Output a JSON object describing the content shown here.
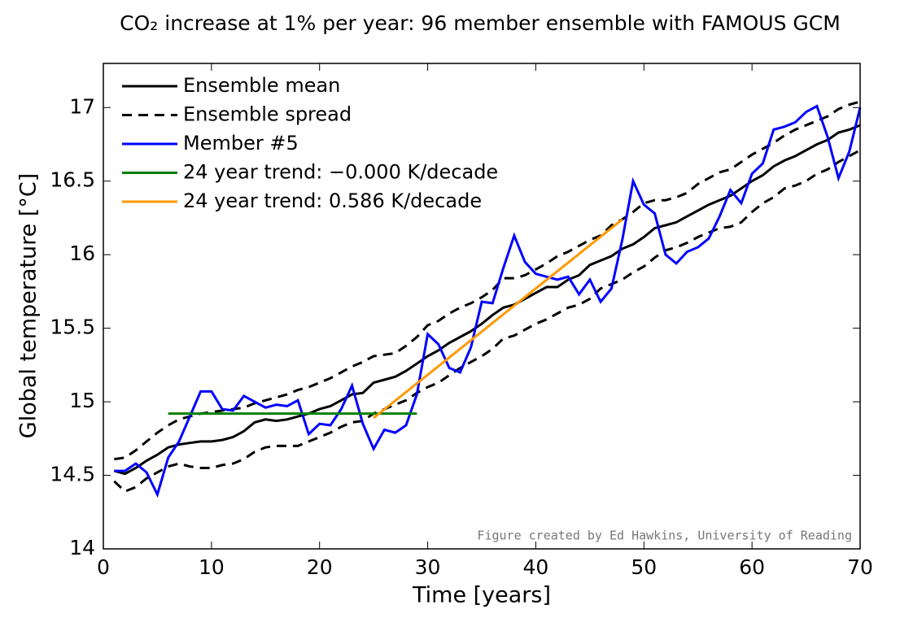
{
  "chart_data": {
    "type": "line",
    "title": "CO₂ increase at 1% per year: 96 member ensemble with FAMOUS GCM",
    "xlabel": "Time  [years]",
    "ylabel": "Global temperature  [°C]",
    "annotation": "Figure created by Ed Hawkins, University of Reading",
    "xlim": [
      0,
      70
    ],
    "xticks": [
      0,
      10,
      20,
      30,
      40,
      50,
      60,
      70
    ],
    "ylim": [
      14,
      17.3
    ],
    "yticks": [
      14,
      14.5,
      15,
      15.5,
      16,
      16.5,
      17
    ],
    "legend": "upper left",
    "x": [
      1,
      2,
      3,
      4,
      5,
      6,
      7,
      8,
      9,
      10,
      11,
      12,
      13,
      14,
      15,
      16,
      17,
      18,
      19,
      20,
      21,
      22,
      23,
      24,
      25,
      26,
      27,
      28,
      29,
      30,
      31,
      32,
      33,
      34,
      35,
      36,
      37,
      38,
      39,
      40,
      41,
      42,
      43,
      44,
      45,
      46,
      47,
      48,
      49,
      50,
      51,
      52,
      53,
      54,
      55,
      56,
      57,
      58,
      59,
      60,
      61,
      62,
      63,
      64,
      65,
      66,
      67,
      68,
      69,
      70
    ],
    "series": [
      {
        "name": "Ensemble mean",
        "color": "#000000",
        "dash": false,
        "values": [
          14.53,
          14.51,
          14.55,
          14.6,
          14.64,
          14.69,
          14.71,
          14.72,
          14.73,
          14.73,
          14.74,
          14.76,
          14.8,
          14.86,
          14.88,
          14.87,
          14.88,
          14.9,
          14.92,
          14.95,
          14.97,
          15.01,
          15.05,
          15.06,
          15.13,
          15.15,
          15.17,
          15.21,
          15.26,
          15.31,
          15.35,
          15.4,
          15.44,
          15.48,
          15.53,
          15.59,
          15.64,
          15.66,
          15.7,
          15.74,
          15.78,
          15.78,
          15.83,
          15.86,
          15.93,
          15.96,
          15.99,
          16.04,
          16.07,
          16.12,
          16.18,
          16.2,
          16.22,
          16.26,
          16.3,
          16.34,
          16.37,
          16.4,
          16.45,
          16.5,
          16.54,
          16.6,
          16.64,
          16.67,
          16.71,
          16.75,
          16.78,
          16.83,
          16.85,
          16.88
        ]
      },
      {
        "name": "Ensemble spread",
        "color": "#000000",
        "dash": true,
        "values": [
          14.61,
          14.62,
          14.67,
          14.73,
          14.79,
          14.84,
          14.88,
          14.9,
          14.92,
          14.93,
          14.94,
          14.95,
          14.96,
          14.99,
          15.01,
          15.03,
          15.05,
          15.08,
          15.1,
          15.13,
          15.16,
          15.2,
          15.24,
          15.27,
          15.31,
          15.32,
          15.33,
          15.38,
          15.44,
          15.52,
          15.55,
          15.6,
          15.64,
          15.67,
          15.71,
          15.76,
          15.84,
          15.84,
          15.86,
          15.9,
          15.94,
          15.99,
          16.02,
          16.06,
          16.1,
          16.13,
          16.2,
          16.24,
          16.29,
          16.35,
          16.37,
          16.37,
          16.39,
          16.42,
          16.48,
          16.52,
          16.56,
          16.58,
          16.63,
          16.68,
          16.72,
          16.76,
          16.81,
          16.85,
          16.88,
          16.91,
          16.94,
          16.99,
          17.02,
          17.04
        ],
        "lower": [
          14.46,
          14.39,
          14.42,
          14.48,
          14.52,
          14.56,
          14.58,
          14.56,
          14.55,
          14.55,
          14.57,
          14.58,
          14.61,
          14.66,
          14.69,
          14.7,
          14.7,
          14.7,
          14.73,
          14.76,
          14.79,
          14.83,
          14.86,
          14.87,
          14.92,
          14.95,
          14.98,
          15.01,
          15.06,
          15.1,
          15.13,
          15.18,
          15.23,
          15.27,
          15.31,
          15.36,
          15.43,
          15.45,
          15.49,
          15.53,
          15.56,
          15.6,
          15.64,
          15.66,
          15.7,
          15.77,
          15.8,
          15.83,
          15.88,
          15.92,
          15.98,
          16.03,
          16.05,
          16.08,
          16.12,
          16.15,
          16.18,
          16.19,
          16.22,
          16.29,
          16.35,
          16.39,
          16.45,
          16.47,
          16.5,
          16.55,
          16.58,
          16.63,
          16.67,
          16.71
        ]
      },
      {
        "name": "Member #5",
        "color": "#0000ff",
        "dash": false,
        "values": [
          14.53,
          14.53,
          14.58,
          14.52,
          14.37,
          14.62,
          14.73,
          14.9,
          15.07,
          15.07,
          14.95,
          14.94,
          15.04,
          15.0,
          14.96,
          14.98,
          14.97,
          15.01,
          14.78,
          14.85,
          14.84,
          14.95,
          15.11,
          14.85,
          14.68,
          14.81,
          14.79,
          14.84,
          15.05,
          15.46,
          15.39,
          15.23,
          15.2,
          15.37,
          15.68,
          15.67,
          15.91,
          16.13,
          15.95,
          15.87,
          15.85,
          15.83,
          15.85,
          15.73,
          15.83,
          15.68,
          15.77,
          16.1,
          16.5,
          16.34,
          16.28,
          16.0,
          15.94,
          16.02,
          16.05,
          16.11,
          16.26,
          16.44,
          16.35,
          16.55,
          16.62,
          16.85,
          16.87,
          16.9,
          16.97,
          17.01,
          16.8,
          16.52,
          16.7,
          17.0
        ]
      },
      {
        "name": "24 year trend: −0.000 K/decade",
        "color": "#008000",
        "dash": false,
        "x": [
          6,
          29
        ],
        "values": [
          14.92,
          14.92
        ]
      },
      {
        "name": "24 year trend: 0.586 K/decade",
        "color": "#ff9900",
        "dash": false,
        "x": [
          25,
          48
        ],
        "values": [
          14.89,
          16.24
        ]
      }
    ]
  }
}
